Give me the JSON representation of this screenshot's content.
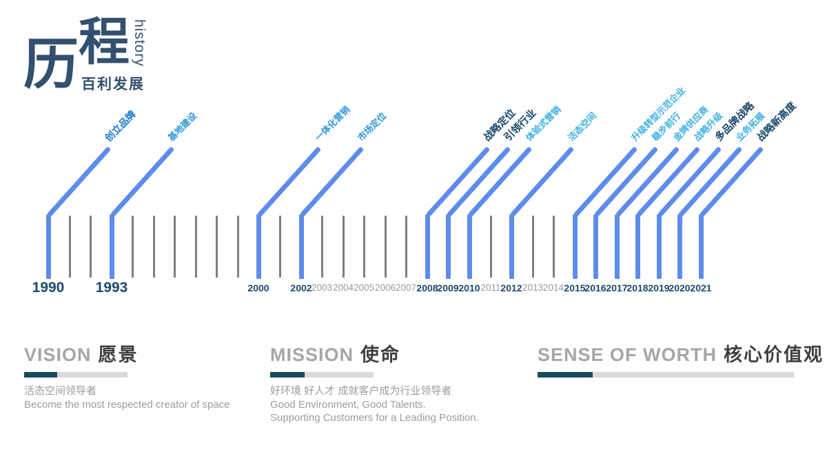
{
  "colors": {
    "title_navy": "#32506F",
    "line_blue": "#5E8CEC",
    "tick_gray": "#7E7E7E",
    "year_navy": "#1A4A6B",
    "year_gray": "#999999",
    "label_navy": "#17466B",
    "label_brand_blue": "#1779D0",
    "label_mid_blue": "#2F97DC",
    "label_cyan": "#3FAFE4",
    "head_gray": "#A6A6A6",
    "head_dark": "#3F3F3F",
    "bar_dark": "#1B4A5E",
    "bar_light": "#D9D9D9",
    "body_gray": "#9B9B9B"
  },
  "title": {
    "zh_char1": "历",
    "zh_char2": "程",
    "en_vertical": "history",
    "subtitle": "百利发展"
  },
  "timeline": {
    "years": [
      {
        "year": "1990",
        "year_style": "major",
        "event": "创立品牌",
        "event_style": "brand"
      },
      {
        "year": "1991",
        "year_style": "hidden"
      },
      {
        "year": "1992",
        "year_style": "hidden"
      },
      {
        "year": "1993",
        "year_style": "major",
        "event": "基地建设",
        "event_style": "mid"
      },
      {
        "year": "1994",
        "year_style": "hidden"
      },
      {
        "year": "1995",
        "year_style": "hidden"
      },
      {
        "year": "1996",
        "year_style": "hidden"
      },
      {
        "year": "1997",
        "year_style": "hidden"
      },
      {
        "year": "1998",
        "year_style": "hidden"
      },
      {
        "year": "1999",
        "year_style": "hidden"
      },
      {
        "year": "2000",
        "year_style": "bold",
        "event": "一体化营销",
        "event_style": "mid"
      },
      {
        "year": "2001",
        "year_style": "hidden"
      },
      {
        "year": "2002",
        "year_style": "bold",
        "event": "市场定位",
        "event_style": "mid"
      },
      {
        "year": "2003",
        "year_style": "gray"
      },
      {
        "year": "2004",
        "year_style": "gray"
      },
      {
        "year": "2005",
        "year_style": "gray"
      },
      {
        "year": "2006",
        "year_style": "gray"
      },
      {
        "year": "2007",
        "year_style": "gray"
      },
      {
        "year": "2008",
        "year_style": "bold",
        "event": "战略定位",
        "event_style": "navy"
      },
      {
        "year": "2009",
        "year_style": "bold",
        "event": "引领行业",
        "event_style": "navy"
      },
      {
        "year": "2010",
        "year_style": "bold",
        "event": "体验式营销",
        "event_style": "cyan"
      },
      {
        "year": "2011",
        "year_style": "gray"
      },
      {
        "year": "2012",
        "year_style": "bold",
        "event": "活态空间",
        "event_style": "cyan"
      },
      {
        "year": "2013",
        "year_style": "gray"
      },
      {
        "year": "2014",
        "year_style": "gray"
      },
      {
        "year": "2015",
        "year_style": "bold",
        "event": "升级转型示范企业",
        "event_style": "cyan"
      },
      {
        "year": "2016",
        "year_style": "bold",
        "event": "稳步前行",
        "event_style": "cyan"
      },
      {
        "year": "2017",
        "year_style": "bold",
        "event": "金牌供应商",
        "event_style": "cyan"
      },
      {
        "year": "2018",
        "year_style": "bold",
        "event": "战略升级",
        "event_style": "cyan"
      },
      {
        "year": "2019",
        "year_style": "bold",
        "event": "多品牌战略",
        "event_style": "navy"
      },
      {
        "year": "2020",
        "year_style": "bold",
        "event": "业务拓展",
        "event_style": "cyan"
      },
      {
        "year": "2021",
        "year_style": "bold",
        "event": "战略新高度",
        "event_style": "navy"
      }
    ]
  },
  "values_sections": [
    {
      "en": "VISION",
      "zh": "愿景",
      "bar_total": 150,
      "bar_dark": 48,
      "lines": [
        "活态空间领导者",
        "Become the most respected creator of space"
      ]
    },
    {
      "en": "MISSION",
      "zh": "使命",
      "bar_total": 150,
      "bar_dark": 50,
      "lines": [
        "好环境 好人才 成就客户成为行业领导者",
        "Good Environment, Good Talents.",
        "Supporting Customers for a Leading Position."
      ]
    },
    {
      "en": "SENSE OF WORTH",
      "zh": "核心价值观",
      "bar_total": 372,
      "bar_dark": 80,
      "lines": []
    }
  ]
}
